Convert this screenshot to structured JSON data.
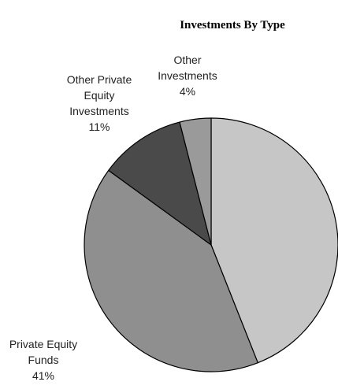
{
  "chart_data": {
    "type": "pie",
    "title": "Investments By Type",
    "slices": [
      {
        "value": 44,
        "color": "#c6c6c6",
        "label_lines": []
      },
      {
        "value": 41,
        "color": "#8f8f8f",
        "label_lines": [
          "Private Equity",
          "Funds",
          "41%"
        ]
      },
      {
        "value": 11,
        "color": "#4a4a4a",
        "label_lines": [
          "Other Private",
          "Equity",
          "Investments",
          "11%"
        ]
      },
      {
        "value": 4,
        "color": "#9a9a9a",
        "label_lines": [
          "Other",
          "Investments",
          "4%"
        ]
      }
    ],
    "start": "12 o'clock",
    "direction": "clockwise",
    "legend": "none"
  }
}
